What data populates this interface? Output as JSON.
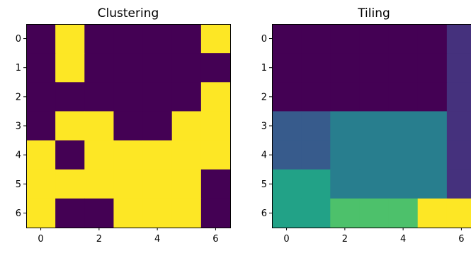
{
  "chart_data": [
    {
      "type": "heatmap",
      "title": "Clustering",
      "xlabel": "",
      "ylabel": "",
      "x_ticks": [
        "0",
        "2",
        "4",
        "6"
      ],
      "y_ticks": [
        "0",
        "1",
        "2",
        "3",
        "4",
        "5",
        "6"
      ],
      "colormap": "viridis",
      "color_range": [
        0,
        1
      ],
      "grid": false,
      "values": [
        [
          0,
          1,
          0,
          0,
          0,
          0,
          1
        ],
        [
          0,
          1,
          0,
          0,
          0,
          0,
          0
        ],
        [
          0,
          0,
          0,
          0,
          0,
          0,
          1
        ],
        [
          0,
          1,
          1,
          0,
          0,
          1,
          1
        ],
        [
          1,
          0,
          1,
          1,
          1,
          1,
          1
        ],
        [
          1,
          1,
          1,
          1,
          1,
          1,
          0
        ],
        [
          1,
          0,
          0,
          1,
          1,
          1,
          0
        ]
      ]
    },
    {
      "type": "heatmap",
      "title": "Tiling",
      "xlabel": "",
      "ylabel": "",
      "x_ticks": [
        "0",
        "2",
        "4",
        "6"
      ],
      "y_ticks": [
        "0",
        "1",
        "2",
        "3",
        "4",
        "5",
        "6"
      ],
      "colormap": "viridis",
      "color_range": [
        0,
        7
      ],
      "grid": false,
      "values": [
        [
          0,
          0,
          0,
          0,
          0,
          0,
          1
        ],
        [
          0,
          0,
          0,
          0,
          0,
          0,
          1
        ],
        [
          0,
          0,
          0,
          0,
          0,
          0,
          1
        ],
        [
          2,
          2,
          3,
          3,
          3,
          3,
          1
        ],
        [
          2,
          2,
          3,
          3,
          3,
          3,
          1
        ],
        [
          4,
          4,
          3,
          3,
          3,
          3,
          1
        ],
        [
          4,
          4,
          5,
          5,
          5,
          7,
          7
        ]
      ]
    }
  ],
  "colors": {
    "viridis_stops": [
      "#440154",
      "#482878",
      "#3e4989",
      "#31688e",
      "#26828e",
      "#1f9e89",
      "#35b779",
      "#6ece58",
      "#b5de2b",
      "#fde725"
    ]
  }
}
